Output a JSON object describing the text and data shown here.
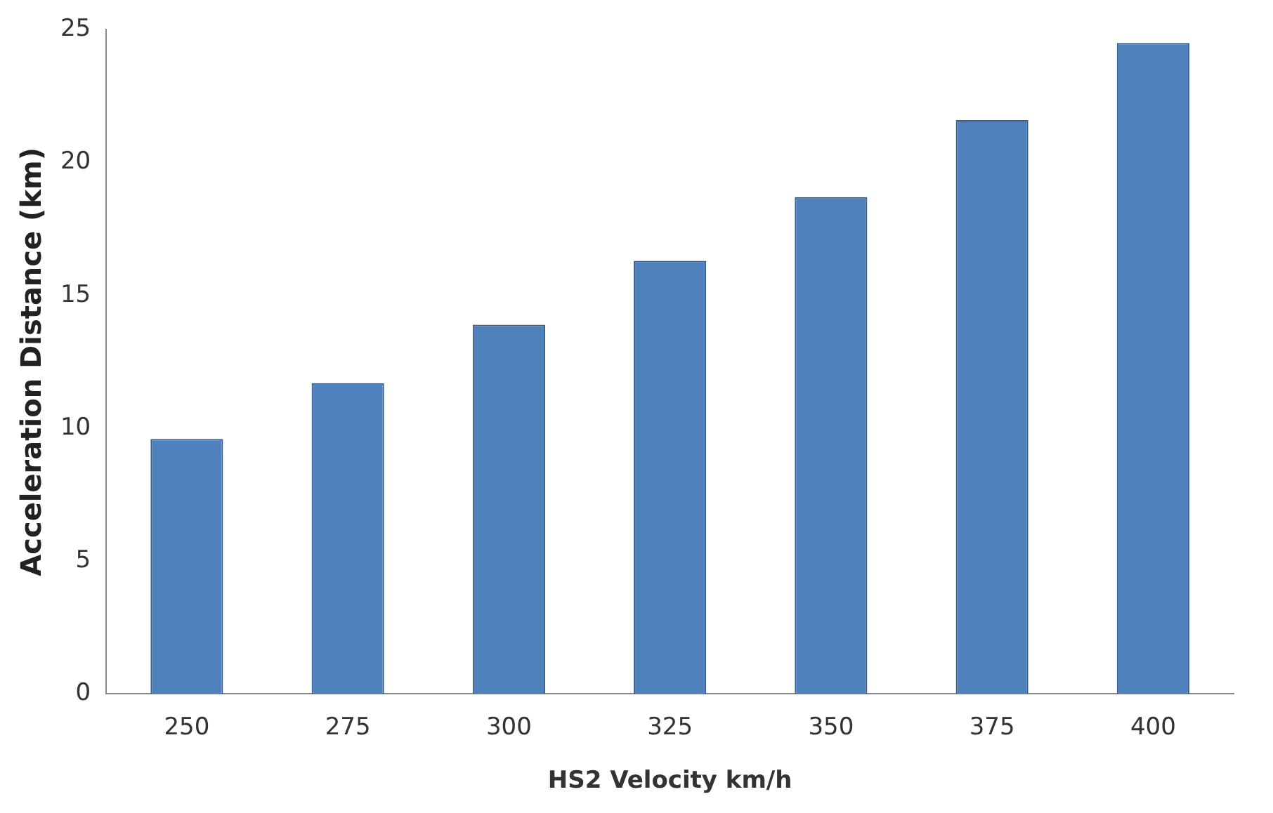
{
  "chart_data": {
    "type": "bar",
    "xlabel": "HS2 Velocity km/h",
    "ylabel": "Acceleration Distance (km)",
    "categories": [
      "250",
      "275",
      "300",
      "325",
      "350",
      "375",
      "400"
    ],
    "values": [
      9.6,
      11.7,
      13.9,
      16.3,
      18.7,
      21.6,
      24.5
    ],
    "color": "#4f81bd",
    "ylim": [
      0,
      25
    ],
    "yticks": [
      0,
      5,
      10,
      15,
      20,
      25
    ],
    "grid": false,
    "legend": false
  }
}
